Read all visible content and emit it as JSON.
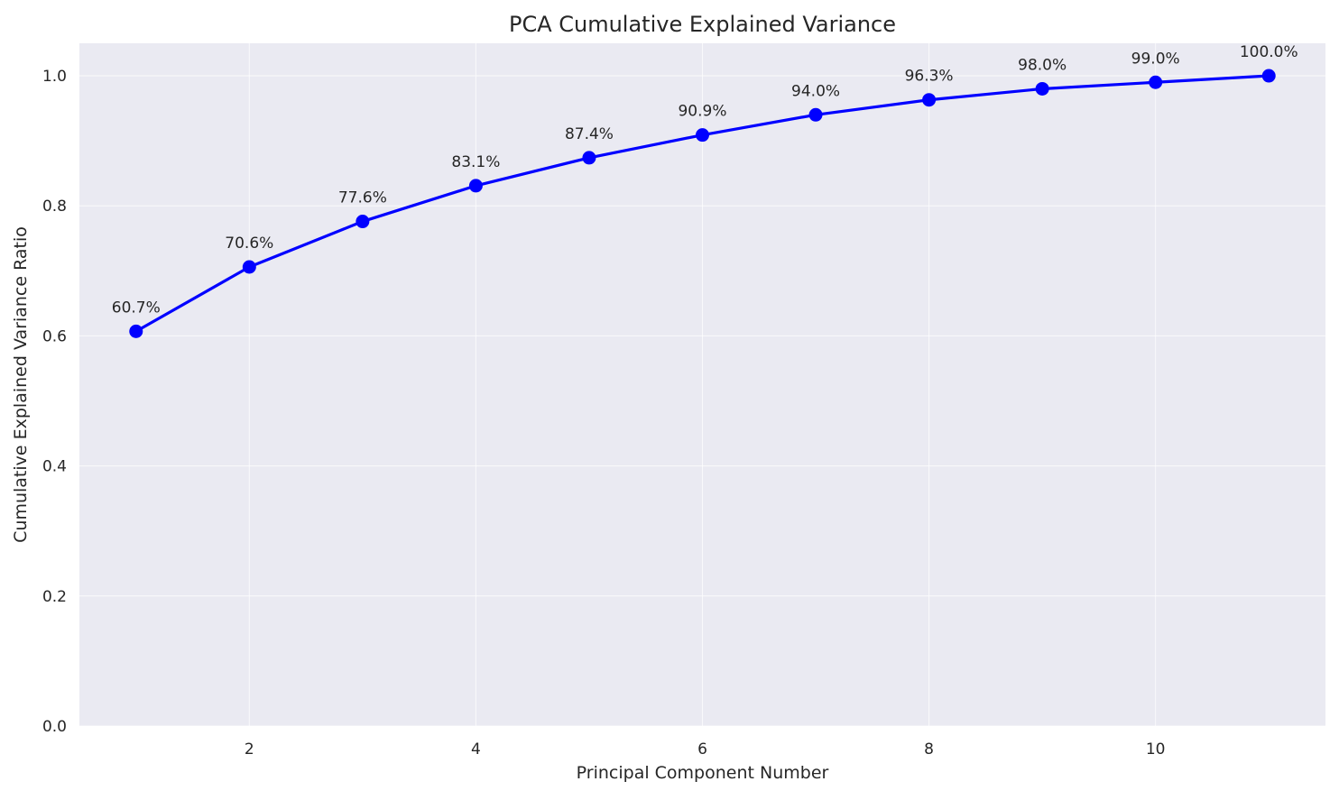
{
  "chart_data": {
    "type": "line",
    "title": "PCA Cumulative Explained Variance",
    "xlabel": "Principal Component Number",
    "ylabel": "Cumulative Explained Variance Ratio",
    "xlim": [
      0.5,
      11.5
    ],
    "ylim": [
      0.0,
      1.05
    ],
    "xticks": [
      2,
      4,
      6,
      8,
      10
    ],
    "xtick_labels": [
      "2",
      "4",
      "6",
      "8",
      "10"
    ],
    "yticks": [
      0.0,
      0.2,
      0.4,
      0.6,
      0.8,
      1.0
    ],
    "ytick_labels": [
      "0.0",
      "0.2",
      "0.4",
      "0.6",
      "0.8",
      "1.0"
    ],
    "grid": true,
    "legend": "none",
    "series": [
      {
        "color": "#0000ff",
        "marker": "circle",
        "x": [
          1,
          2,
          3,
          4,
          5,
          6,
          7,
          8,
          9,
          10,
          11
        ],
        "y": [
          0.607,
          0.706,
          0.776,
          0.831,
          0.874,
          0.909,
          0.94,
          0.963,
          0.98,
          0.99,
          1.0
        ],
        "data_labels": [
          "60.7%",
          "70.6%",
          "77.6%",
          "83.1%",
          "87.4%",
          "90.9%",
          "94.0%",
          "96.3%",
          "98.0%",
          "99.0%",
          "100.0%"
        ]
      }
    ],
    "colors": {
      "background": "#eaeaf2",
      "grid": "#ffffff",
      "line": "#0000ff",
      "text": "#262626"
    }
  }
}
